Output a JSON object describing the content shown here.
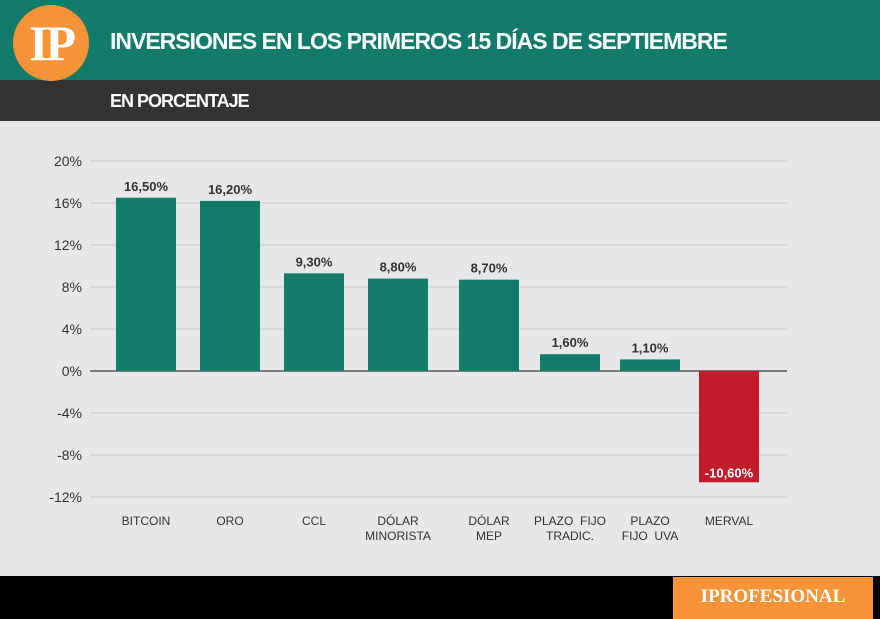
{
  "header": {
    "logo": "IP",
    "title": "INVERSIONES EN LOS PRIMEROS 15 DÍAS DE SEPTIEMBRE",
    "subtitle": "EN PORCENTAJE"
  },
  "footer": {
    "brand": "IPROFESIONAL"
  },
  "chart_data": {
    "type": "bar",
    "title": "INVERSIONES EN LOS PRIMEROS 15 DÍAS DE SEPTIEMBRE",
    "subtitle": "EN PORCENTAJE",
    "categories": [
      [
        "BITCOIN"
      ],
      [
        "ORO"
      ],
      [
        "CCL"
      ],
      [
        "DÓLAR",
        "MINORISTA"
      ],
      [
        "DÓLAR",
        "MEP"
      ],
      [
        "PLAZO  FIJO",
        "TRADIC."
      ],
      [
        "PLAZO",
        "FIJO  UVA"
      ],
      [
        "MERVAL"
      ]
    ],
    "values": [
      16.5,
      16.2,
      9.3,
      8.8,
      8.7,
      1.6,
      1.1,
      -10.6
    ],
    "labels": [
      "16,50%",
      "16,20%",
      "9,30%",
      "8,80%",
      "8,70%",
      "1,60%",
      "1,10%",
      "-10,60%"
    ],
    "yticks": [
      "20%",
      "16%",
      "12%",
      "8%",
      "4%",
      "0%",
      "-4%",
      "-8%",
      "-12%"
    ],
    "ytick_values": [
      20,
      16,
      12,
      8,
      4,
      0,
      -4,
      -8,
      -12
    ],
    "ylim": [
      -12,
      20
    ],
    "grid": true,
    "colors": {
      "positive": "#127b6a",
      "negative": "#c11b2d"
    }
  }
}
